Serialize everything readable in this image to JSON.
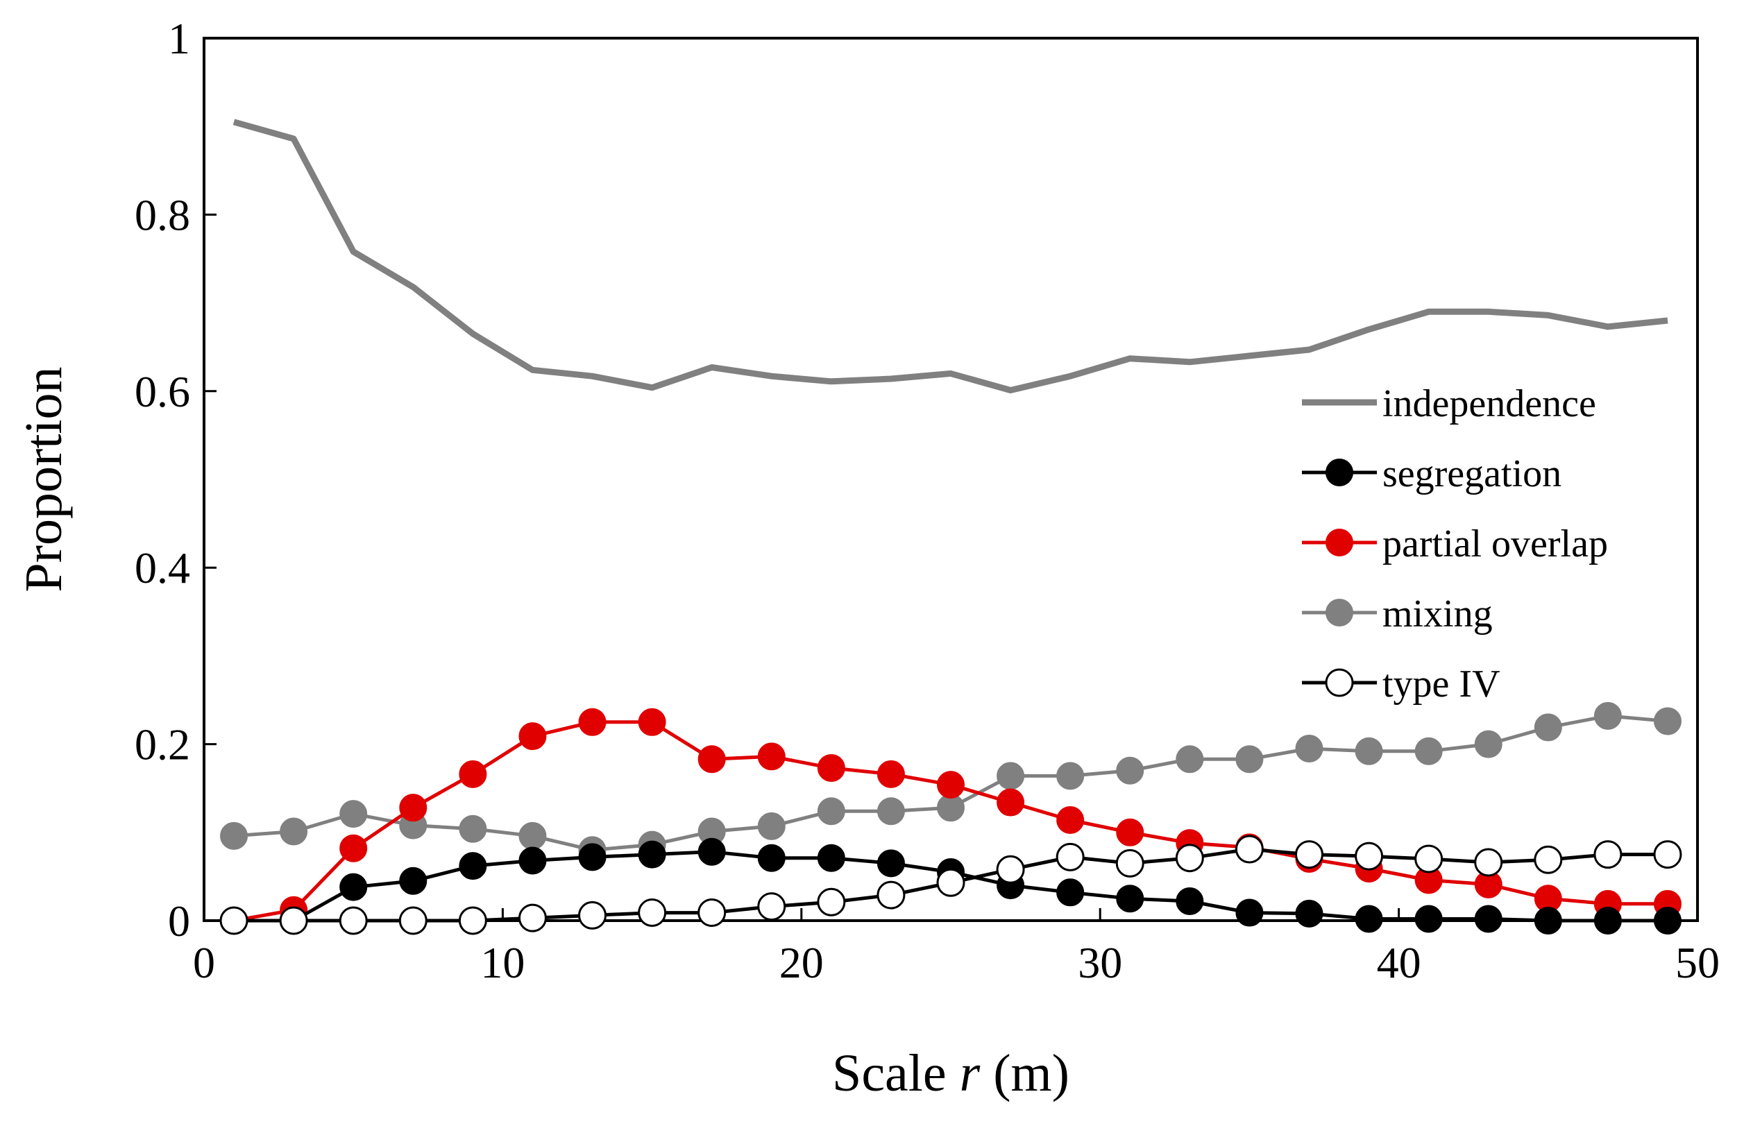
{
  "chart_data": {
    "type": "line",
    "xlabel_prefix": "Scale ",
    "xlabel_var": "r",
    "xlabel_suffix": " (m)",
    "ylabel": "Proportion",
    "xlim": [
      0,
      50
    ],
    "ylim": [
      0,
      1
    ],
    "xticks": [
      "0",
      "10",
      "20",
      "30",
      "40",
      "50"
    ],
    "yticks": [
      "0",
      "0.2",
      "0.4",
      "0.6",
      "0.8",
      "1"
    ],
    "grid": false,
    "legend_position": "right",
    "x": [
      1,
      3,
      5,
      7,
      9,
      11,
      13,
      15,
      17,
      19,
      21,
      23,
      25,
      27,
      29,
      31,
      33,
      35,
      37,
      39,
      41,
      43,
      45,
      47,
      49
    ],
    "series": [
      {
        "name": "independence",
        "color": "#808080",
        "marker": "none",
        "values": [
          0.905,
          0.886,
          0.758,
          0.718,
          0.665,
          0.624,
          0.617,
          0.604,
          0.627,
          0.617,
          0.611,
          0.614,
          0.62,
          0.601,
          0.617,
          0.637,
          0.633,
          0.64,
          0.647,
          0.67,
          0.69,
          0.69,
          0.686,
          0.673,
          0.68
        ]
      },
      {
        "name": "segregation",
        "color": "#000000",
        "marker": "filled",
        "values": [
          0.0,
          0.0,
          0.038,
          0.045,
          0.062,
          0.068,
          0.072,
          0.075,
          0.078,
          0.071,
          0.071,
          0.065,
          0.055,
          0.04,
          0.032,
          0.025,
          0.022,
          0.009,
          0.008,
          0.002,
          0.002,
          0.002,
          0.0,
          0.0,
          0.0
        ]
      },
      {
        "name": "partial overlap",
        "color": "#e00000",
        "marker": "filled",
        "values": [
          0.0,
          0.012,
          0.082,
          0.128,
          0.166,
          0.209,
          0.225,
          0.225,
          0.183,
          0.186,
          0.173,
          0.166,
          0.154,
          0.134,
          0.114,
          0.1,
          0.088,
          0.083,
          0.07,
          0.059,
          0.046,
          0.041,
          0.025,
          0.019,
          0.019
        ]
      },
      {
        "name": "mixing",
        "color": "#808080",
        "marker": "filled",
        "values": [
          0.096,
          0.101,
          0.121,
          0.108,
          0.104,
          0.096,
          0.08,
          0.086,
          0.101,
          0.107,
          0.124,
          0.124,
          0.128,
          0.164,
          0.164,
          0.17,
          0.183,
          0.183,
          0.195,
          0.192,
          0.192,
          0.2,
          0.219,
          0.232,
          0.226
        ]
      },
      {
        "name": "type IV",
        "color": "#000000",
        "marker": "open",
        "values": [
          0.0,
          0.0,
          0.0,
          0.0,
          0.0,
          0.003,
          0.006,
          0.009,
          0.009,
          0.016,
          0.021,
          0.029,
          0.043,
          0.058,
          0.072,
          0.065,
          0.071,
          0.081,
          0.075,
          0.073,
          0.07,
          0.066,
          0.069,
          0.075,
          0.075
        ]
      }
    ]
  }
}
